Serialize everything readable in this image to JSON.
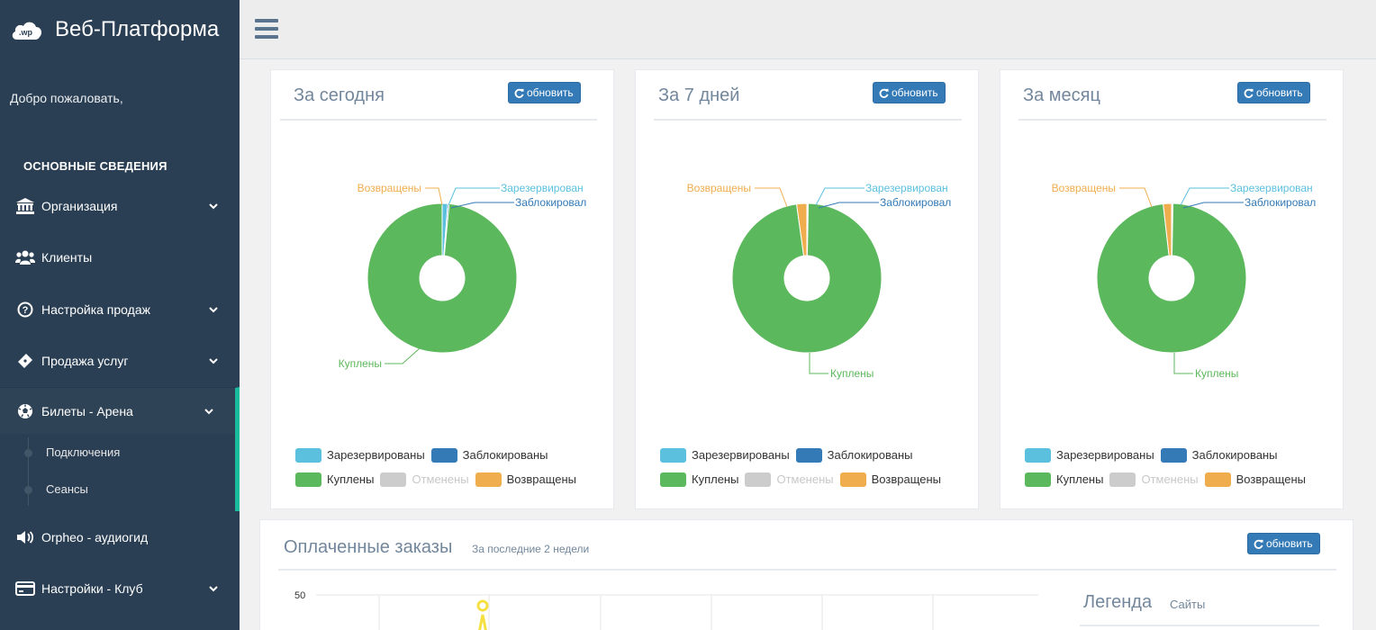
{
  "app": {
    "brand_name": "Веб-Платформа",
    "logo_text": ".wp",
    "welcome": "Добро пожаловать,"
  },
  "sidebar": {
    "section_title": "ОСНОВНЫЕ СВЕДЕНИЯ",
    "items": [
      {
        "label": "Организация",
        "icon": "bank-icon",
        "has_chevron": true
      },
      {
        "label": "Клиенты",
        "icon": "users-icon",
        "has_chevron": false
      },
      {
        "label": "Настройка продаж",
        "icon": "question-circle-icon",
        "has_chevron": true
      },
      {
        "label": "Продажа услуг",
        "icon": "ticket-icon",
        "has_chevron": true
      },
      {
        "label": "Билеты - Арена",
        "icon": "soccer-ball-icon",
        "has_chevron": true,
        "active": true
      },
      {
        "label": "Orpheo - аудиогид",
        "icon": "volume-icon",
        "has_chevron": false
      },
      {
        "label": "Настройки - Клуб",
        "icon": "credit-card-icon",
        "has_chevron": true
      }
    ],
    "subitems": [
      "Подключения",
      "Сеансы"
    ]
  },
  "common": {
    "refresh_label": "обновить",
    "legend": {
      "reserved": "Зарезервированы",
      "blocked": "Заблокированы",
      "bought": "Куплены",
      "cancelled": "Отменены",
      "returned": "Возвращены"
    },
    "slice_labels": {
      "reserved": "Зарезервирован",
      "blocked": "Заблокировал",
      "bought": "Куплены",
      "returned": "Возвращены"
    }
  },
  "colors": {
    "reserved": "#5bc0de",
    "blocked": "#337ab7",
    "bought": "#5cb85c",
    "cancelled": "#cccccc",
    "returned": "#f0ad4e",
    "accent": "#1abb9c",
    "sidebar_bg": "#2a3f54"
  },
  "chart_data": [
    {
      "type": "pie",
      "title": "За сегодня",
      "categories": [
        "Зарезервированы",
        "Заблокированы",
        "Куплены",
        "Отменены",
        "Возвращены"
      ],
      "values": [
        1.2,
        0.3,
        98.5,
        0,
        0
      ],
      "legend_position": "bottom"
    },
    {
      "type": "pie",
      "title": "За 7 дней",
      "categories": [
        "Зарезервированы",
        "Заблокированы",
        "Куплены",
        "Отменены",
        "Возвращены"
      ],
      "values": [
        0.2,
        0.1,
        97.5,
        0,
        2.2
      ],
      "legend_position": "bottom"
    },
    {
      "type": "pie",
      "title": "За месяц",
      "categories": [
        "Зарезервированы",
        "Заблокированы",
        "Куплены",
        "Отменены",
        "Возвращены"
      ],
      "values": [
        0.2,
        0.1,
        97.9,
        0,
        1.8
      ],
      "legend_position": "bottom"
    },
    {
      "type": "line",
      "title": "Оплаченные заказы",
      "subtitle": "За последние 2 недели",
      "y_tick_visible": "50",
      "legend_title": "Легенда",
      "legend_sub": "Сайты"
    }
  ]
}
